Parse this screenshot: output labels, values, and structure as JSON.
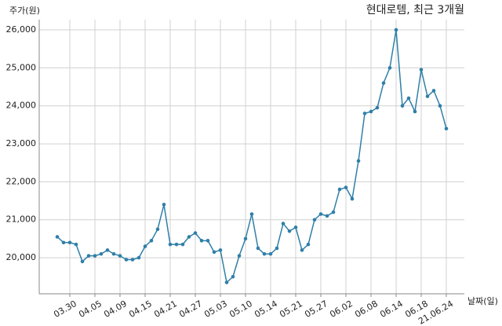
{
  "chart_data": {
    "type": "line",
    "title": "현대로템, 최근 3개월",
    "y_label": "주가(원)",
    "x_label": "날짜(일)",
    "categories": [
      null,
      null,
      "03.30",
      null,
      null,
      null,
      "04.05",
      null,
      null,
      null,
      "04.09",
      null,
      null,
      null,
      "04.15",
      null,
      null,
      null,
      "04.21",
      null,
      null,
      null,
      "04.27",
      null,
      null,
      null,
      "05.03",
      null,
      null,
      null,
      "05.10",
      null,
      null,
      null,
      "05.14",
      null,
      null,
      null,
      "05.21",
      null,
      null,
      null,
      "05.27",
      null,
      null,
      null,
      "06.02",
      null,
      null,
      null,
      "06.08",
      null,
      null,
      null,
      "06.14",
      null,
      null,
      null,
      "06.18",
      null,
      null,
      null,
      "21.06.24"
    ],
    "values": [
      20550,
      20400,
      20400,
      20350,
      19900,
      20050,
      20050,
      20100,
      20200,
      20100,
      20050,
      19950,
      19950,
      20000,
      20300,
      20450,
      20750,
      21400,
      20350,
      20350,
      20350,
      20550,
      20650,
      20450,
      20450,
      20150,
      20200,
      19350,
      19500,
      20050,
      20500,
      21150,
      20250,
      20100,
      20100,
      20250,
      20900,
      20700,
      20800,
      20200,
      20350,
      21000,
      21150,
      21100,
      21200,
      21800,
      21850,
      21550,
      22550,
      23800,
      23850,
      23950,
      24600,
      25000,
      26000,
      24000,
      24200,
      23850,
      24950,
      24250,
      24400,
      24000,
      23400
    ],
    "color": "#2f7fa8",
    "ylim": [
      19050,
      26270
    ],
    "yticks": [
      {
        "value": 20000,
        "label": "20,000"
      },
      {
        "value": 21000,
        "label": "21,000"
      },
      {
        "value": 22000,
        "label": "22,000"
      },
      {
        "value": 23000,
        "label": "23,000"
      },
      {
        "value": 24000,
        "label": "24,000"
      },
      {
        "value": 25000,
        "label": "25,000"
      },
      {
        "value": 26000,
        "label": "26,000"
      }
    ],
    "grid": true
  }
}
